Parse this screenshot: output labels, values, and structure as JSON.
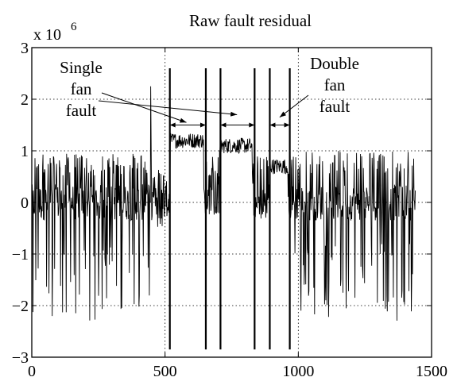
{
  "chart_data": {
    "type": "line",
    "title": "Raw fault residual",
    "xlabel": "",
    "ylabel": "",
    "xlim": [
      0,
      1500
    ],
    "ylim": [
      -3,
      3
    ],
    "y_multiplier_label": "x 10",
    "y_multiplier_exponent": "6",
    "grid": true,
    "x_ticks": [
      0,
      500,
      1000,
      1500
    ],
    "x_tick_labels": [
      "0",
      "500",
      "1000",
      "1500"
    ],
    "y_ticks": [
      -3,
      -2,
      -1,
      0,
      1,
      2,
      3
    ],
    "y_tick_labels": [
      "−3",
      "−2",
      "−1",
      "0",
      "1",
      "2",
      "3"
    ],
    "series": [
      {
        "segments": [
          {
            "x_range": [
              0,
              445
            ],
            "kind": "oscillating",
            "baseline": 0.0,
            "spike_max": 0.95,
            "spike_min": -2.3
          },
          {
            "x_range": [
              445,
              450
            ],
            "kind": "spike",
            "value": 2.25
          },
          {
            "x_range": [
              450,
              515
            ],
            "kind": "oscillating",
            "baseline": 0.0,
            "spike_max": 0.7,
            "spike_min": -0.6
          },
          {
            "x_range": [
              515,
              648
            ],
            "kind": "elevated",
            "level": 1.2
          },
          {
            "x_range": [
              648,
              700
            ],
            "kind": "oscillating",
            "baseline": 0.0,
            "spike_max": 0.9,
            "spike_min": -0.3
          },
          {
            "x_range": [
              700,
              830
            ],
            "kind": "elevated",
            "level": 1.1
          },
          {
            "x_range": [
              830,
              890
            ],
            "kind": "oscillating",
            "baseline": 0.0,
            "spike_max": 0.9,
            "spike_min": -0.3
          },
          {
            "x_range": [
              890,
              965
            ],
            "kind": "elevated",
            "level": 0.7
          },
          {
            "x_range": [
              965,
              1440
            ],
            "kind": "oscillating",
            "baseline": 0.0,
            "spike_max": 1.0,
            "spike_min": -2.3
          }
        ]
      }
    ],
    "fault_markers": [
      {
        "x": 518,
        "y_range": [
          -2.85,
          2.6
        ]
      },
      {
        "x": 653,
        "y_range": [
          -2.85,
          2.6
        ]
      },
      {
        "x": 708,
        "y_range": [
          -2.85,
          2.6
        ]
      },
      {
        "x": 836,
        "y_range": [
          -2.85,
          2.6
        ]
      },
      {
        "x": 893,
        "y_range": [
          -2.85,
          2.6
        ]
      },
      {
        "x": 968,
        "y_range": [
          -2.85,
          2.6
        ]
      }
    ],
    "intervals": [
      {
        "x_start": 518,
        "x_end": 653,
        "y": 1.5
      },
      {
        "x_start": 708,
        "x_end": 836,
        "y": 1.5
      },
      {
        "x_start": 893,
        "x_end": 968,
        "y": 1.5
      }
    ],
    "annotations": [
      {
        "id": "single",
        "lines": [
          "Single",
          "fan",
          "fault"
        ]
      },
      {
        "id": "double",
        "lines": [
          "Double",
          "fan",
          "fault"
        ]
      }
    ],
    "arrows": [
      {
        "from": "single",
        "to_x": 580,
        "to_y": 1.55
      },
      {
        "from": "single",
        "to_x": 770,
        "to_y": 1.7
      },
      {
        "from": "double",
        "to_x": 930,
        "to_y": 1.65
      }
    ]
  }
}
